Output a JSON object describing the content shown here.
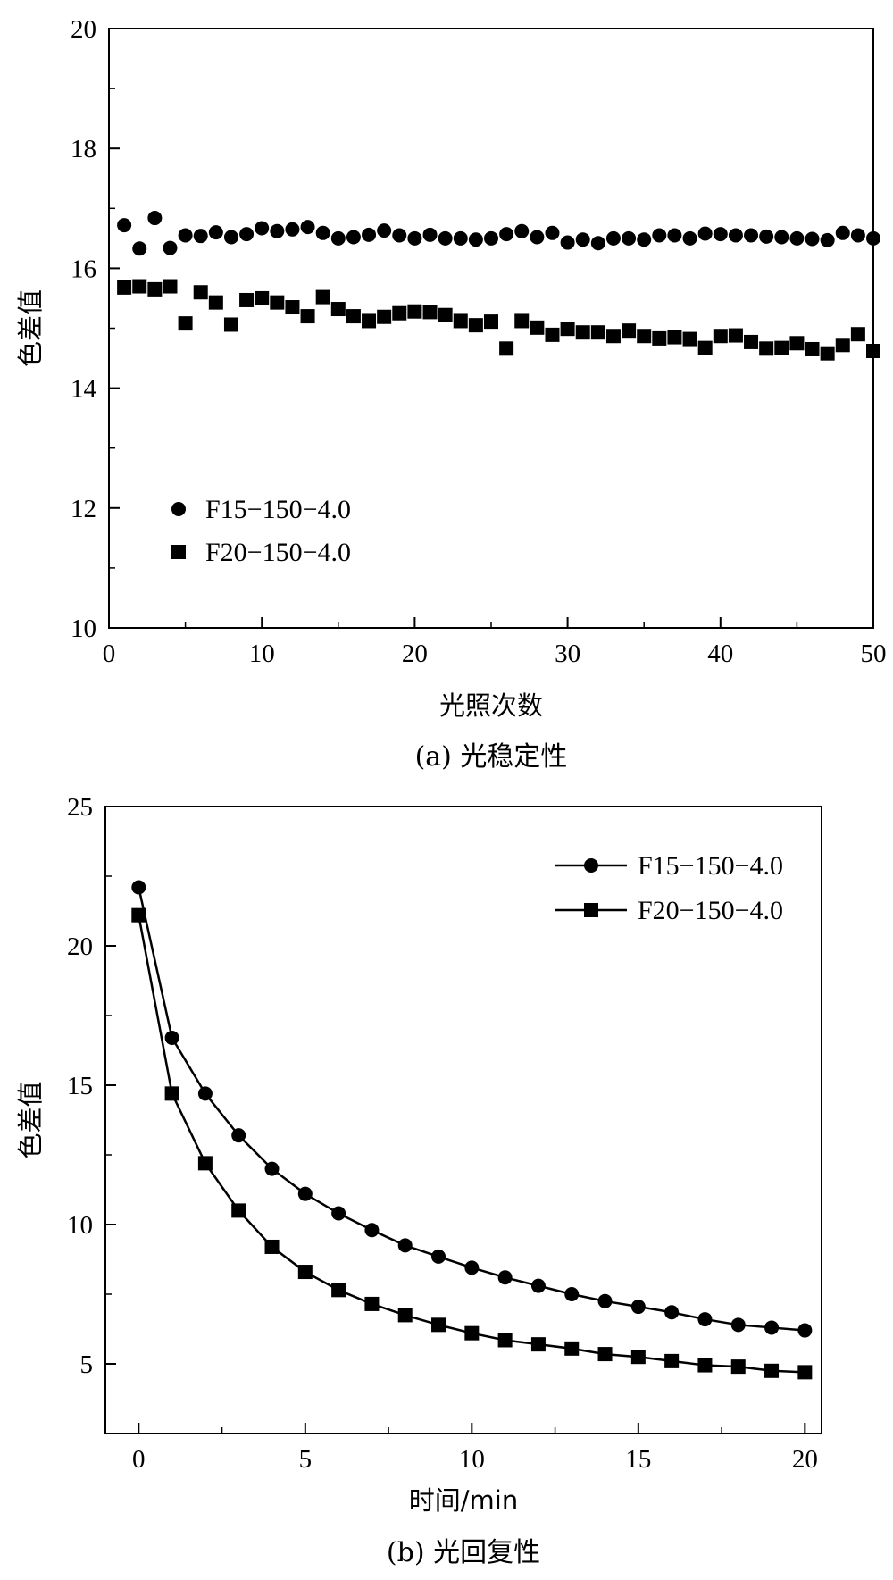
{
  "chart_data": [
    {
      "type": "scatter",
      "caption": "(a) 光稳定性",
      "xlabel": "光照次数",
      "ylabel": "色差值",
      "xlim": [
        0,
        50
      ],
      "ylim": [
        10,
        20
      ],
      "xticks": [
        "0",
        "10",
        "20",
        "30",
        "40",
        "50"
      ],
      "yticks": [
        "10",
        "12",
        "14",
        "16",
        "18",
        "20"
      ],
      "legend_position": "lower-left",
      "series": [
        {
          "name": "F15−150−4.0",
          "marker": "circle",
          "x": [
            1,
            2,
            3,
            4,
            5,
            6,
            7,
            8,
            9,
            10,
            11,
            12,
            13,
            14,
            15,
            16,
            17,
            18,
            19,
            20,
            21,
            22,
            23,
            24,
            25,
            26,
            27,
            28,
            29,
            30,
            31,
            32,
            33,
            34,
            35,
            36,
            37,
            38,
            39,
            40,
            41,
            42,
            43,
            44,
            45,
            46,
            47,
            48,
            49,
            50
          ],
          "values": [
            16.72,
            16.33,
            16.84,
            16.34,
            16.55,
            16.54,
            16.6,
            16.52,
            16.57,
            16.67,
            16.62,
            16.65,
            16.69,
            16.59,
            16.5,
            16.52,
            16.56,
            16.63,
            16.55,
            16.5,
            16.56,
            16.5,
            16.5,
            16.48,
            16.5,
            16.57,
            16.62,
            16.52,
            16.59,
            16.43,
            16.48,
            16.42,
            16.5,
            16.5,
            16.48,
            16.55,
            16.55,
            16.5,
            16.58,
            16.57,
            16.55,
            16.55,
            16.53,
            16.52,
            16.5,
            16.49,
            16.47,
            16.59,
            16.55,
            16.5
          ]
        },
        {
          "name": "F20−150−4.0",
          "marker": "square",
          "x": [
            1,
            2,
            3,
            4,
            5,
            6,
            7,
            8,
            9,
            10,
            11,
            12,
            13,
            14,
            15,
            16,
            17,
            18,
            19,
            20,
            21,
            22,
            23,
            24,
            25,
            26,
            27,
            28,
            29,
            30,
            31,
            32,
            33,
            34,
            35,
            36,
            37,
            38,
            39,
            40,
            41,
            42,
            43,
            44,
            45,
            46,
            47,
            48,
            49,
            50
          ],
          "values": [
            15.68,
            15.7,
            15.65,
            15.7,
            15.08,
            15.6,
            15.43,
            15.06,
            15.47,
            15.5,
            15.43,
            15.35,
            15.2,
            15.52,
            15.32,
            15.2,
            15.12,
            15.19,
            15.25,
            15.28,
            15.27,
            15.22,
            15.12,
            15.05,
            15.11,
            14.66,
            15.12,
            15.01,
            14.89,
            14.99,
            14.93,
            14.93,
            14.87,
            14.96,
            14.87,
            14.83,
            14.85,
            14.82,
            14.67,
            14.87,
            14.88,
            14.77,
            14.66,
            14.67,
            14.75,
            14.65,
            14.58,
            14.72,
            14.9,
            14.62
          ]
        }
      ]
    },
    {
      "type": "line",
      "caption": "(b) 光回复性",
      "xlabel": "时间/min",
      "ylabel": "色差值",
      "xlim": [
        -1,
        20.5
      ],
      "ylim": [
        2.5,
        25
      ],
      "xticks": [
        "0",
        "5",
        "10",
        "15",
        "20"
      ],
      "yticks": [
        "5",
        "10",
        "15",
        "20",
        "25"
      ],
      "legend_position": "top-right",
      "series": [
        {
          "name": "F15−150−4.0",
          "marker": "circle",
          "x": [
            0,
            1,
            2,
            3,
            4,
            5,
            6,
            7,
            8,
            9,
            10,
            11,
            12,
            13,
            14,
            15,
            16,
            17,
            18,
            19,
            20
          ],
          "values": [
            22.1,
            16.7,
            14.7,
            13.2,
            12.0,
            11.1,
            10.4,
            9.8,
            9.25,
            8.85,
            8.45,
            8.1,
            7.8,
            7.5,
            7.25,
            7.05,
            6.85,
            6.6,
            6.4,
            6.3,
            6.2
          ]
        },
        {
          "name": "F20−150−4.0",
          "marker": "square",
          "x": [
            0,
            1,
            2,
            3,
            4,
            5,
            6,
            7,
            8,
            9,
            10,
            11,
            12,
            13,
            14,
            15,
            16,
            17,
            18,
            19,
            20
          ],
          "values": [
            21.1,
            14.7,
            12.2,
            10.5,
            9.2,
            8.3,
            7.65,
            7.15,
            6.75,
            6.4,
            6.1,
            5.85,
            5.7,
            5.55,
            5.35,
            5.25,
            5.1,
            4.95,
            4.9,
            4.75,
            4.7
          ]
        }
      ]
    }
  ]
}
